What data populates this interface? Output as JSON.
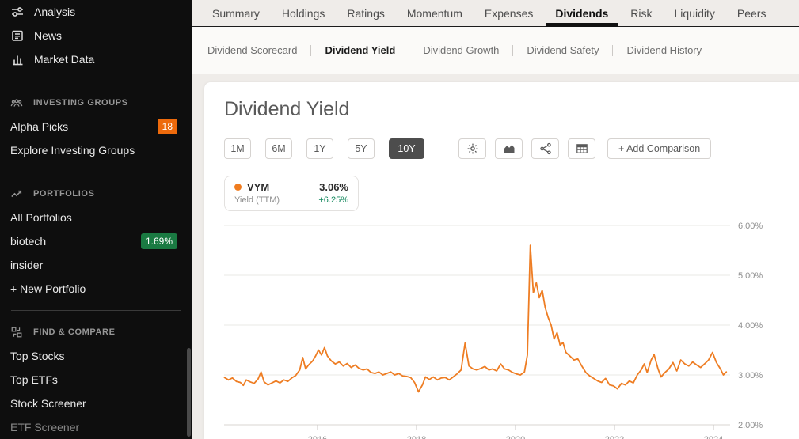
{
  "colors": {
    "accent_orange": "#ee7d23",
    "alpha_picks_badge": "#ed6a0c",
    "portfolio_badge_green": "#1a7a42",
    "change_green": "#12875c",
    "sidebar_bg": "#0e0e0e",
    "active_button_bg": "#4d4d4d"
  },
  "sidebar": {
    "top_items": [
      {
        "icon": "analysis-icon",
        "label": "Analysis"
      },
      {
        "icon": "news-icon",
        "label": "News"
      },
      {
        "icon": "market-data-icon",
        "label": "Market Data"
      }
    ],
    "sections": [
      {
        "icon": "investing-groups-icon",
        "header": "INVESTING GROUPS",
        "items": [
          {
            "label": "Alpha Picks",
            "badge": "18",
            "badge_color": "#ed6a0c"
          },
          {
            "label": "Explore Investing Groups"
          }
        ]
      },
      {
        "icon": "portfolios-icon",
        "header": "PORTFOLIOS",
        "items": [
          {
            "label": "All Portfolios"
          },
          {
            "label": "biotech",
            "badge": "1.69%",
            "badge_color": "#1a7a42"
          },
          {
            "label": "insider"
          },
          {
            "label": "+ New Portfolio"
          }
        ]
      },
      {
        "icon": "find-compare-icon",
        "header": "FIND & COMPARE",
        "items": [
          {
            "label": "Top Stocks"
          },
          {
            "label": "Top ETFs"
          },
          {
            "label": "Stock Screener"
          },
          {
            "label": "ETF Screener",
            "muted": true
          }
        ]
      }
    ]
  },
  "topnav": {
    "tabs": [
      {
        "label": "Summary"
      },
      {
        "label": "Holdings"
      },
      {
        "label": "Ratings"
      },
      {
        "label": "Momentum"
      },
      {
        "label": "Expenses"
      },
      {
        "label": "Dividends",
        "active": true
      },
      {
        "label": "Risk"
      },
      {
        "label": "Liquidity"
      },
      {
        "label": "Peers"
      }
    ]
  },
  "subnav": {
    "items": [
      {
        "label": "Dividend Scorecard"
      },
      {
        "label": "Dividend Yield",
        "active": true
      },
      {
        "label": "Dividend Growth"
      },
      {
        "label": "Dividend Safety"
      },
      {
        "label": "Dividend History"
      }
    ]
  },
  "main": {
    "title": "Dividend Yield",
    "ranges": [
      {
        "label": "1M"
      },
      {
        "label": "6M"
      },
      {
        "label": "1Y"
      },
      {
        "label": "5Y"
      },
      {
        "label": "10Y",
        "active": true
      }
    ],
    "icon_buttons": [
      "gear-icon",
      "area-chart-icon",
      "share-icon",
      "table-icon"
    ],
    "add_comparison": "+ Add Comparison"
  },
  "legend": {
    "ticker": "VYM",
    "metric": "Yield (TTM)",
    "value": "3.06%",
    "change": "+6.25%",
    "dot_color": "#f07c1f"
  },
  "chart_data": {
    "type": "line",
    "title": "Dividend Yield",
    "xlabel": "",
    "ylabel": "Yield (TTM) %",
    "x_axis_labels": [
      "2016",
      "2018",
      "2020",
      "2022",
      "2024"
    ],
    "x_tick_values": [
      2016,
      2018,
      2020,
      2022,
      2024
    ],
    "y_axis_labels": [
      "6.00%",
      "5.00%",
      "4.00%",
      "3.00%",
      "2.00%"
    ],
    "y_tick_values": [
      6,
      5,
      4,
      3,
      2
    ],
    "xlim": [
      2014.1,
      2024.4
    ],
    "ylim": [
      2,
      6.1
    ],
    "grid": "horizontal",
    "legend_position": "top-left chip",
    "series": [
      {
        "name": "VYM Yield (TTM)",
        "color": "#ee7d23",
        "latest_value": 3.06,
        "change_pct": "+6.25%",
        "points": [
          [
            2014.12,
            2.95
          ],
          [
            2014.2,
            2.9
          ],
          [
            2014.28,
            2.94
          ],
          [
            2014.36,
            2.87
          ],
          [
            2014.44,
            2.85
          ],
          [
            2014.5,
            2.79
          ],
          [
            2014.56,
            2.9
          ],
          [
            2014.64,
            2.86
          ],
          [
            2014.72,
            2.83
          ],
          [
            2014.8,
            2.92
          ],
          [
            2014.86,
            3.06
          ],
          [
            2014.92,
            2.86
          ],
          [
            2015.0,
            2.8
          ],
          [
            2015.08,
            2.84
          ],
          [
            2015.16,
            2.88
          ],
          [
            2015.24,
            2.84
          ],
          [
            2015.32,
            2.9
          ],
          [
            2015.4,
            2.87
          ],
          [
            2015.48,
            2.94
          ],
          [
            2015.56,
            2.99
          ],
          [
            2015.64,
            3.1
          ],
          [
            2015.7,
            3.35
          ],
          [
            2015.76,
            3.12
          ],
          [
            2015.82,
            3.2
          ],
          [
            2015.9,
            3.28
          ],
          [
            2015.96,
            3.38
          ],
          [
            2016.02,
            3.5
          ],
          [
            2016.08,
            3.4
          ],
          [
            2016.14,
            3.55
          ],
          [
            2016.2,
            3.38
          ],
          [
            2016.28,
            3.28
          ],
          [
            2016.36,
            3.22
          ],
          [
            2016.44,
            3.26
          ],
          [
            2016.52,
            3.18
          ],
          [
            2016.6,
            3.23
          ],
          [
            2016.68,
            3.15
          ],
          [
            2016.76,
            3.2
          ],
          [
            2016.84,
            3.13
          ],
          [
            2016.92,
            3.1
          ],
          [
            2017.0,
            3.12
          ],
          [
            2017.08,
            3.05
          ],
          [
            2017.16,
            3.03
          ],
          [
            2017.24,
            3.06
          ],
          [
            2017.32,
            3.0
          ],
          [
            2017.4,
            3.03
          ],
          [
            2017.48,
            3.06
          ],
          [
            2017.56,
            3.0
          ],
          [
            2017.64,
            3.03
          ],
          [
            2017.72,
            2.98
          ],
          [
            2017.8,
            2.97
          ],
          [
            2017.88,
            2.95
          ],
          [
            2017.96,
            2.85
          ],
          [
            2018.04,
            2.66
          ],
          [
            2018.12,
            2.8
          ],
          [
            2018.18,
            2.96
          ],
          [
            2018.26,
            2.91
          ],
          [
            2018.34,
            2.96
          ],
          [
            2018.42,
            2.9
          ],
          [
            2018.5,
            2.94
          ],
          [
            2018.58,
            2.95
          ],
          [
            2018.66,
            2.9
          ],
          [
            2018.74,
            2.96
          ],
          [
            2018.82,
            3.02
          ],
          [
            2018.9,
            3.1
          ],
          [
            2018.98,
            3.64
          ],
          [
            2019.06,
            3.18
          ],
          [
            2019.14,
            3.12
          ],
          [
            2019.22,
            3.1
          ],
          [
            2019.3,
            3.13
          ],
          [
            2019.38,
            3.17
          ],
          [
            2019.46,
            3.1
          ],
          [
            2019.54,
            3.12
          ],
          [
            2019.62,
            3.08
          ],
          [
            2019.7,
            3.22
          ],
          [
            2019.78,
            3.12
          ],
          [
            2019.86,
            3.1
          ],
          [
            2019.94,
            3.05
          ],
          [
            2020.02,
            3.02
          ],
          [
            2020.1,
            3.0
          ],
          [
            2020.18,
            3.06
          ],
          [
            2020.24,
            3.4
          ],
          [
            2020.3,
            5.6
          ],
          [
            2020.36,
            4.65
          ],
          [
            2020.42,
            4.85
          ],
          [
            2020.48,
            4.55
          ],
          [
            2020.54,
            4.7
          ],
          [
            2020.6,
            4.35
          ],
          [
            2020.66,
            4.15
          ],
          [
            2020.72,
            4.0
          ],
          [
            2020.78,
            3.72
          ],
          [
            2020.84,
            3.85
          ],
          [
            2020.9,
            3.6
          ],
          [
            2020.96,
            3.65
          ],
          [
            2021.02,
            3.45
          ],
          [
            2021.1,
            3.38
          ],
          [
            2021.18,
            3.3
          ],
          [
            2021.26,
            3.32
          ],
          [
            2021.34,
            3.18
          ],
          [
            2021.42,
            3.05
          ],
          [
            2021.5,
            2.98
          ],
          [
            2021.58,
            2.93
          ],
          [
            2021.66,
            2.88
          ],
          [
            2021.74,
            2.85
          ],
          [
            2021.82,
            2.93
          ],
          [
            2021.9,
            2.8
          ],
          [
            2021.98,
            2.78
          ],
          [
            2022.06,
            2.72
          ],
          [
            2022.14,
            2.83
          ],
          [
            2022.22,
            2.8
          ],
          [
            2022.3,
            2.88
          ],
          [
            2022.38,
            2.84
          ],
          [
            2022.46,
            3.0
          ],
          [
            2022.54,
            3.1
          ],
          [
            2022.6,
            3.22
          ],
          [
            2022.66,
            3.05
          ],
          [
            2022.74,
            3.3
          ],
          [
            2022.8,
            3.41
          ],
          [
            2022.88,
            3.12
          ],
          [
            2022.94,
            2.96
          ],
          [
            2023.02,
            3.05
          ],
          [
            2023.1,
            3.12
          ],
          [
            2023.18,
            3.25
          ],
          [
            2023.26,
            3.08
          ],
          [
            2023.34,
            3.3
          ],
          [
            2023.42,
            3.22
          ],
          [
            2023.5,
            3.18
          ],
          [
            2023.58,
            3.26
          ],
          [
            2023.66,
            3.2
          ],
          [
            2023.74,
            3.15
          ],
          [
            2023.82,
            3.22
          ],
          [
            2023.9,
            3.3
          ],
          [
            2023.98,
            3.45
          ],
          [
            2024.06,
            3.25
          ],
          [
            2024.14,
            3.12
          ],
          [
            2024.2,
            3.0
          ],
          [
            2024.26,
            3.06
          ]
        ]
      }
    ]
  }
}
